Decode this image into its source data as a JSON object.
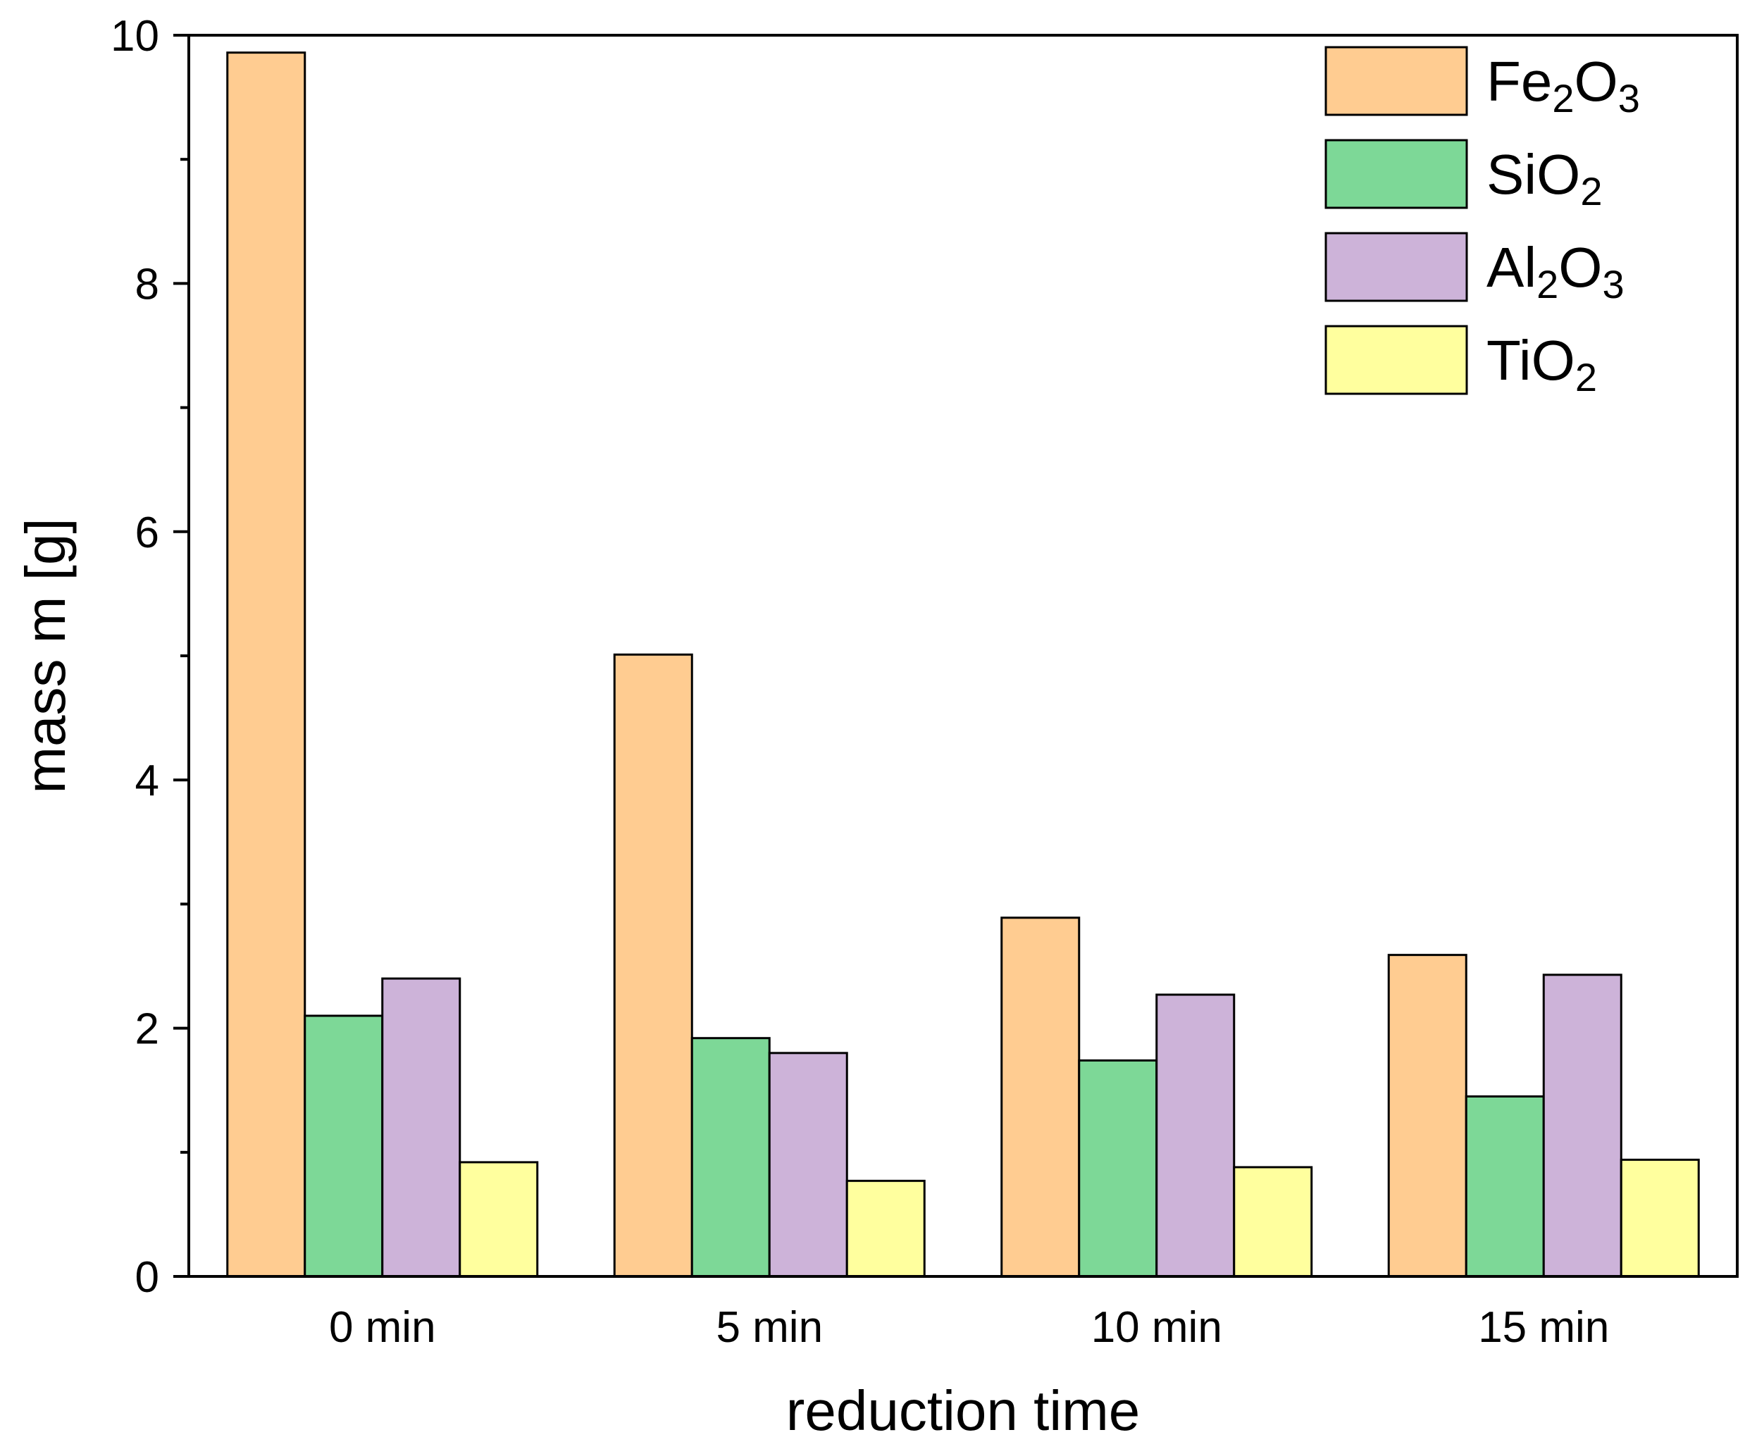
{
  "chart_data": {
    "type": "bar",
    "title": "",
    "xlabel": "reduction time",
    "ylabel": "mass m [g]",
    "categories": [
      "0 min",
      "5 min",
      "10 min",
      "15 min"
    ],
    "ylim": [
      0,
      10
    ],
    "yticks": [
      0,
      2,
      4,
      6,
      8,
      10
    ],
    "yticks_minor": [
      1,
      3,
      5,
      7,
      9
    ],
    "legend_position": "top-right",
    "series": [
      {
        "name": "Fe2O3",
        "base": "Fe",
        "subscripts": [
          "2",
          "3"
        ],
        "color": "#FFCC91",
        "values": [
          9.86,
          5.01,
          2.89,
          2.59
        ]
      },
      {
        "name": "SiO2",
        "base": "Si",
        "subscripts": [
          "",
          "2"
        ],
        "color": "#7DD897",
        "values": [
          2.1,
          1.92,
          1.74,
          1.45
        ]
      },
      {
        "name": "Al2O3",
        "base": "Al",
        "subscripts": [
          "2",
          "3"
        ],
        "color": "#CDB3D9",
        "values": [
          2.4,
          1.8,
          2.27,
          2.43
        ]
      },
      {
        "name": "TiO2",
        "base": "Ti",
        "subscripts": [
          "",
          "2"
        ],
        "color": "#FFFF9E",
        "values": [
          0.92,
          0.77,
          0.88,
          0.94
        ]
      }
    ]
  }
}
